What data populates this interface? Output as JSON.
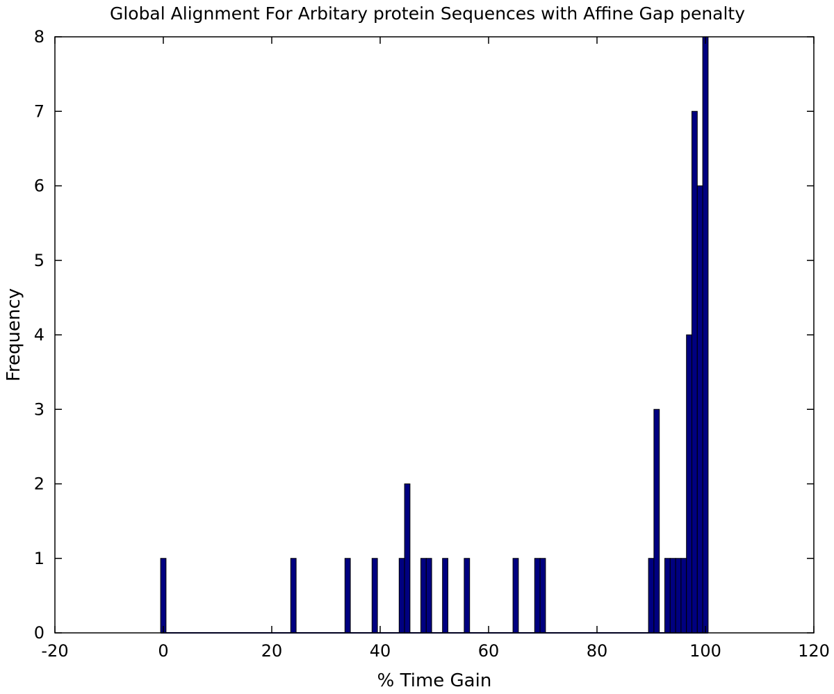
{
  "chart_data": {
    "type": "bar",
    "title": "Global Alignment For Arbitary protein Sequences with Affine Gap penalty",
    "xlabel": "% Time Gain",
    "ylabel": "Frequency",
    "xlim": [
      -20,
      120
    ],
    "ylim": [
      0,
      8
    ],
    "xticks": [
      -20,
      0,
      20,
      40,
      60,
      80,
      100,
      120
    ],
    "yticks": [
      0,
      1,
      2,
      3,
      4,
      5,
      6,
      7,
      8
    ],
    "bin_width": 1,
    "grid": false,
    "legend": "none",
    "bar_color": "#000080",
    "bars": [
      {
        "x": 0,
        "y": 1
      },
      {
        "x": 24,
        "y": 1
      },
      {
        "x": 34,
        "y": 1
      },
      {
        "x": 39,
        "y": 1
      },
      {
        "x": 44,
        "y": 1
      },
      {
        "x": 45,
        "y": 2
      },
      {
        "x": 48,
        "y": 1
      },
      {
        "x": 49,
        "y": 1
      },
      {
        "x": 52,
        "y": 1
      },
      {
        "x": 56,
        "y": 1
      },
      {
        "x": 65,
        "y": 1
      },
      {
        "x": 69,
        "y": 1
      },
      {
        "x": 70,
        "y": 1
      },
      {
        "x": 90,
        "y": 1
      },
      {
        "x": 91,
        "y": 3
      },
      {
        "x": 93,
        "y": 1
      },
      {
        "x": 94,
        "y": 1
      },
      {
        "x": 95,
        "y": 1
      },
      {
        "x": 96,
        "y": 1
      },
      {
        "x": 97,
        "y": 4
      },
      {
        "x": 98,
        "y": 7
      },
      {
        "x": 99,
        "y": 6
      },
      {
        "x": 100,
        "y": 8
      }
    ]
  }
}
